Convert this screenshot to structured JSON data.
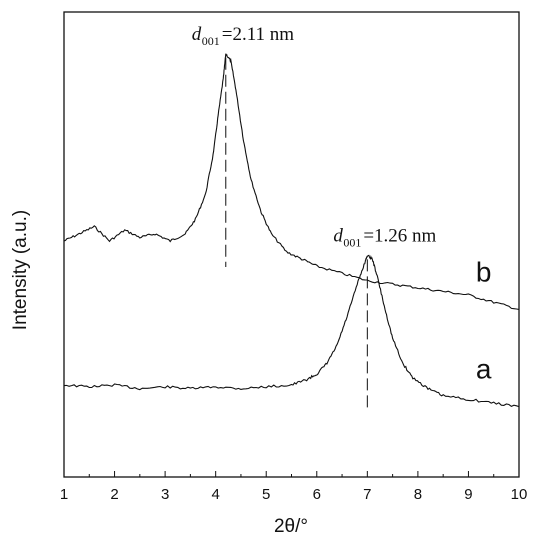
{
  "chart_data": {
    "type": "line",
    "xlabel": "2θ/°",
    "ylabel": "Intensity (a.u.)",
    "xlim": [
      1,
      10
    ],
    "x_ticks": [
      "1",
      "2",
      "3",
      "4",
      "5",
      "6",
      "7",
      "8",
      "9",
      "10"
    ],
    "y_ticks_labeled": false,
    "grid": false,
    "series": [
      {
        "name": "b",
        "points": [
          [
            1.0,
            0.6
          ],
          [
            1.3,
            0.62
          ],
          [
            1.6,
            0.64
          ],
          [
            1.9,
            0.6
          ],
          [
            2.2,
            0.63
          ],
          [
            2.5,
            0.61
          ],
          [
            2.8,
            0.62
          ],
          [
            3.1,
            0.6
          ],
          [
            3.4,
            0.62
          ],
          [
            3.6,
            0.66
          ],
          [
            3.8,
            0.73
          ],
          [
            3.95,
            0.84
          ],
          [
            4.05,
            0.95
          ],
          [
            4.15,
            1.05
          ],
          [
            4.2,
            1.12
          ],
          [
            4.3,
            1.1
          ],
          [
            4.4,
            1.02
          ],
          [
            4.55,
            0.88
          ],
          [
            4.7,
            0.77
          ],
          [
            4.9,
            0.68
          ],
          [
            5.1,
            0.62
          ],
          [
            5.4,
            0.57
          ],
          [
            5.7,
            0.55
          ],
          [
            6.0,
            0.53
          ],
          [
            6.5,
            0.51
          ],
          [
            7.0,
            0.49
          ],
          [
            7.5,
            0.48
          ],
          [
            8.0,
            0.47
          ],
          [
            8.5,
            0.46
          ],
          [
            9.0,
            0.45
          ],
          [
            9.5,
            0.43
          ],
          [
            10.0,
            0.41
          ]
        ]
      },
      {
        "name": "a",
        "points": [
          [
            1.0,
            0.2
          ],
          [
            1.5,
            0.195
          ],
          [
            2.0,
            0.2
          ],
          [
            2.5,
            0.19
          ],
          [
            3.0,
            0.195
          ],
          [
            3.5,
            0.19
          ],
          [
            4.0,
            0.195
          ],
          [
            4.5,
            0.19
          ],
          [
            5.0,
            0.195
          ],
          [
            5.5,
            0.2
          ],
          [
            5.8,
            0.215
          ],
          [
            6.0,
            0.23
          ],
          [
            6.2,
            0.26
          ],
          [
            6.4,
            0.31
          ],
          [
            6.6,
            0.39
          ],
          [
            6.8,
            0.48
          ],
          [
            6.95,
            0.54
          ],
          [
            7.0,
            0.56
          ],
          [
            7.1,
            0.55
          ],
          [
            7.2,
            0.5
          ],
          [
            7.35,
            0.41
          ],
          [
            7.5,
            0.33
          ],
          [
            7.7,
            0.26
          ],
          [
            7.9,
            0.22
          ],
          [
            8.2,
            0.19
          ],
          [
            8.5,
            0.17
          ],
          [
            9.0,
            0.16
          ],
          [
            9.5,
            0.15
          ],
          [
            10.0,
            0.14
          ]
        ]
      }
    ],
    "annotations": [
      {
        "x": 4.2,
        "y": 1.12,
        "symbol": "d",
        "sub": "001",
        "text": "=2.11 nm"
      },
      {
        "x": 7.0,
        "y": 0.56,
        "symbol": "d",
        "sub": "001",
        "text": "=1.26 nm"
      }
    ]
  }
}
